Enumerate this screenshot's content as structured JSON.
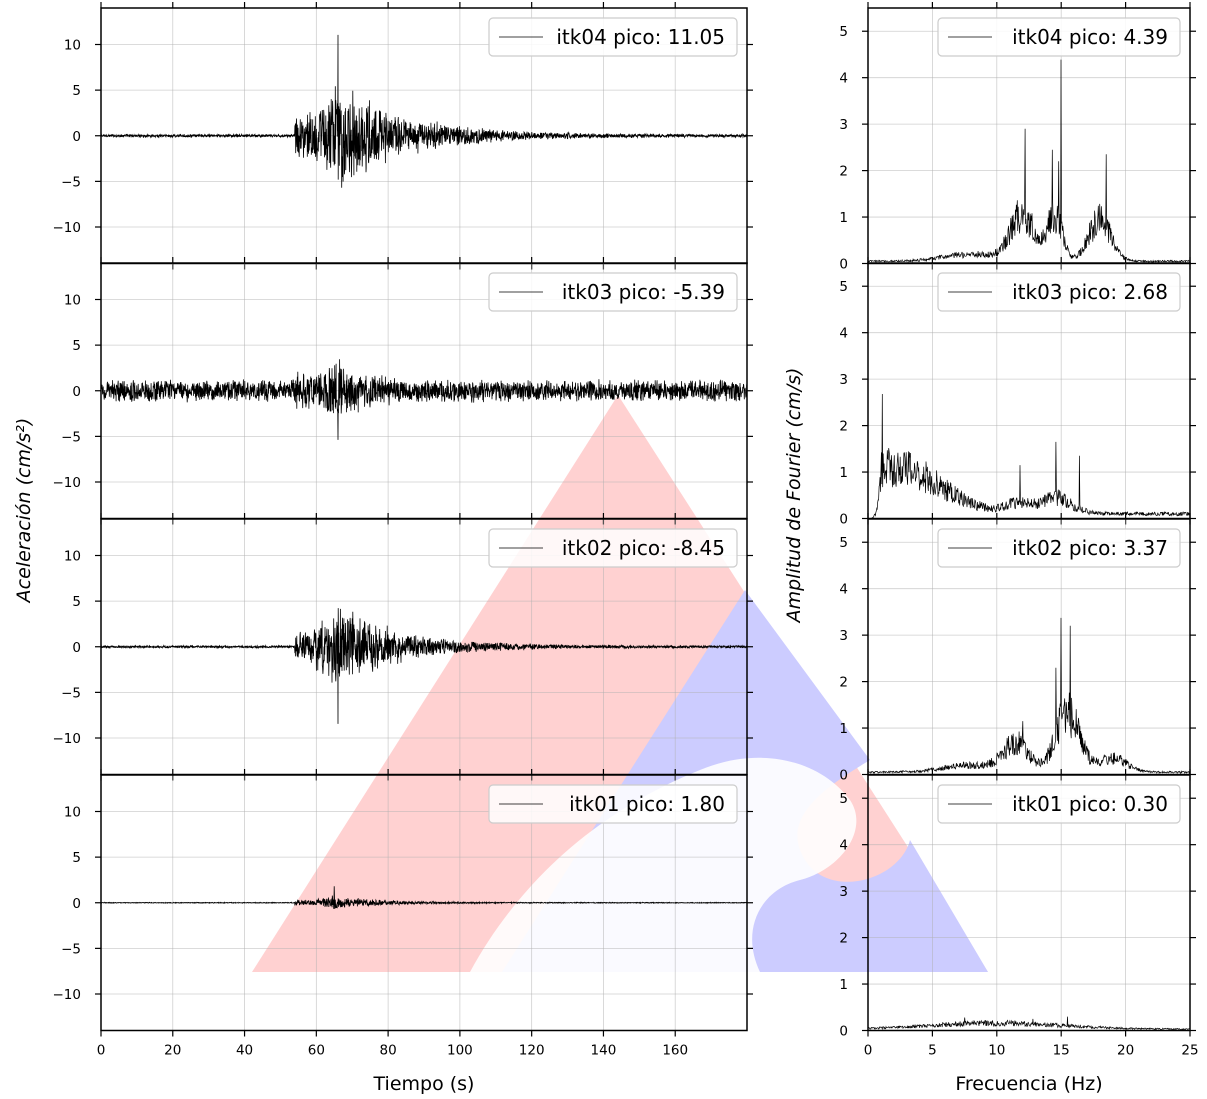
{
  "figure": {
    "left_ylabel": "Aceleración (cm/s²)",
    "left_xlabel": "Tiempo (s)",
    "right_ylabel": "Amplitud de Fourier (cm/s)",
    "right_xlabel": "Frecuencia (Hz)"
  },
  "colors": {
    "trace": "#000000",
    "grid": "#b0b0b0",
    "watermark_red": "#ff9a9a",
    "watermark_blue": "#a9a9ff"
  },
  "chart_data": [
    {
      "type": "line",
      "panel": "time",
      "station": "itk04",
      "legend": "itk04 pico: 11.05",
      "xlim": [
        0,
        180
      ],
      "ylim": [
        -14,
        14
      ],
      "xticks": [
        0,
        20,
        40,
        60,
        80,
        100,
        120,
        140,
        160
      ],
      "yticks": [
        -10,
        -5,
        0,
        5,
        10
      ],
      "ytick_labels": [
        "−10",
        "−5",
        "0",
        "5",
        "10"
      ],
      "peak": 11.05,
      "arrival_s": 54,
      "peak_time_s": 66,
      "noise": 0.18,
      "envelope": 6.5,
      "decay_s": 18,
      "grid": true,
      "legend_loc": "upper right"
    },
    {
      "type": "line",
      "panel": "time",
      "station": "itk03",
      "legend": "itk03 pico: -5.39",
      "xlim": [
        0,
        180
      ],
      "ylim": [
        -14,
        14
      ],
      "xticks": [
        0,
        20,
        40,
        60,
        80,
        100,
        120,
        140,
        160
      ],
      "yticks": [
        -10,
        -5,
        0,
        5,
        10
      ],
      "ytick_labels": [
        "−10",
        "−5",
        "0",
        "5",
        "10"
      ],
      "peak": -5.39,
      "arrival_s": 54,
      "peak_time_s": 66,
      "noise": 1.3,
      "envelope": 2.5,
      "decay_s": 8,
      "grid": true,
      "legend_loc": "upper right"
    },
    {
      "type": "line",
      "panel": "time",
      "station": "itk02",
      "legend": "itk02 pico: -8.45",
      "xlim": [
        0,
        180
      ],
      "ylim": [
        -14,
        14
      ],
      "xticks": [
        0,
        20,
        40,
        60,
        80,
        100,
        120,
        140,
        160
      ],
      "yticks": [
        -10,
        -5,
        0,
        5,
        10
      ],
      "ytick_labels": [
        "−10",
        "−5",
        "0",
        "5",
        "10"
      ],
      "peak": -8.45,
      "arrival_s": 54,
      "peak_time_s": 66,
      "noise": 0.15,
      "envelope": 5.0,
      "decay_s": 17,
      "grid": true,
      "legend_loc": "upper right"
    },
    {
      "type": "line",
      "panel": "time",
      "station": "itk01",
      "legend": "itk01 pico: 1.80",
      "xlim": [
        0,
        180
      ],
      "ylim": [
        -14,
        14
      ],
      "xticks": [
        0,
        20,
        40,
        60,
        80,
        100,
        120,
        140,
        160
      ],
      "xtick_labels": [
        "0",
        "20",
        "40",
        "60",
        "80",
        "100",
        "120",
        "140",
        "160"
      ],
      "yticks": [
        -10,
        -5,
        0,
        5,
        10
      ],
      "ytick_labels": [
        "−10",
        "−5",
        "0",
        "5",
        "10"
      ],
      "peak": 1.8,
      "arrival_s": 54,
      "peak_time_s": 65,
      "noise": 0.05,
      "envelope": 0.8,
      "decay_s": 14,
      "grid": true,
      "legend_loc": "upper right"
    },
    {
      "type": "line",
      "panel": "spectrum",
      "station": "itk04",
      "legend": "itk04 pico: 4.39",
      "xlim": [
        0,
        25
      ],
      "ylim": [
        0,
        5.5
      ],
      "xticks": [
        0,
        5,
        10,
        15,
        20,
        25
      ],
      "yticks": [
        0,
        1,
        2,
        3,
        4,
        5
      ],
      "base": 0.05,
      "bumps": [
        [
          12,
          1.0,
          1.3
        ],
        [
          14.5,
          1.0,
          0.8
        ],
        [
          18,
          0.9,
          1.2
        ],
        [
          8,
          0.15,
          3.0
        ]
      ],
      "spikes": [
        [
          15,
          4.39
        ],
        [
          12.2,
          2.9
        ],
        [
          14.3,
          2.45
        ],
        [
          18.5,
          2.35
        ],
        [
          14.8,
          2.2
        ]
      ],
      "grid": true,
      "legend_loc": "upper right"
    },
    {
      "type": "line",
      "panel": "spectrum",
      "station": "itk03",
      "legend": "itk03 pico: 2.68",
      "xlim": [
        0,
        25
      ],
      "ylim": [
        0,
        5.5
      ],
      "xticks": [
        0,
        5,
        10,
        15,
        20,
        25
      ],
      "yticks": [
        0,
        1,
        2,
        3,
        4,
        5
      ],
      "base": 0.1,
      "bumps": [
        [
          2.0,
          1.0,
          5.0
        ],
        [
          14.5,
          0.35,
          1.8
        ],
        [
          11.5,
          0.2,
          1.2
        ]
      ],
      "spikes": [
        [
          1.1,
          2.68
        ],
        [
          14.6,
          1.65
        ],
        [
          16.4,
          1.35
        ],
        [
          11.8,
          1.15
        ]
      ],
      "grid": true,
      "legend_loc": "upper right"
    },
    {
      "type": "line",
      "panel": "spectrum",
      "station": "itk02",
      "legend": "itk02 pico: 3.37",
      "xlim": [
        0,
        25
      ],
      "ylim": [
        0,
        5.5
      ],
      "xticks": [
        0,
        5,
        10,
        15,
        20,
        25
      ],
      "yticks": [
        0,
        1,
        2,
        3,
        4,
        5
      ],
      "base": 0.05,
      "bumps": [
        [
          15.5,
          1.3,
          1.3
        ],
        [
          11.5,
          0.6,
          1.4
        ],
        [
          8,
          0.15,
          3.0
        ],
        [
          19,
          0.3,
          1.5
        ]
      ],
      "spikes": [
        [
          15,
          3.37
        ],
        [
          15.7,
          3.2
        ],
        [
          14.6,
          2.3
        ],
        [
          12.0,
          1.15
        ]
      ],
      "grid": true,
      "legend_loc": "upper right"
    },
    {
      "type": "line",
      "panel": "spectrum",
      "station": "itk01",
      "legend": "itk01 pico: 0.30",
      "xlim": [
        0,
        25
      ],
      "ylim": [
        0,
        5.5
      ],
      "xticks": [
        0,
        5,
        10,
        15,
        20,
        25
      ],
      "xtick_labels": [
        "0",
        "5",
        "10",
        "15",
        "20",
        "25"
      ],
      "yticks": [
        0,
        1,
        2,
        3,
        4,
        5
      ],
      "base": 0.03,
      "bumps": [
        [
          10,
          0.13,
          7.0
        ]
      ],
      "spikes": [
        [
          7.5,
          0.28
        ],
        [
          15.5,
          0.3
        ],
        [
          12.8,
          0.25
        ]
      ],
      "grid": true,
      "legend_loc": "upper right"
    }
  ]
}
